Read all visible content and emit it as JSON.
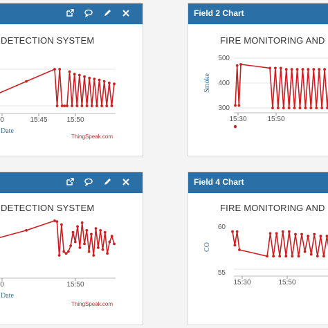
{
  "colors": {
    "header": "#2a6fa5",
    "series": "#cc1f1f",
    "grid": "#e6e6e6",
    "background": "#f4f4f4"
  },
  "panels": [
    {
      "id": "p1",
      "header_title": "",
      "icons": [
        "external-link-icon",
        "comment-icon",
        "pencil-icon",
        "close-icon"
      ],
      "chart_title": "DETECTION SYSTEM",
      "credit": "ThingSpeak.com",
      "chart_data": {
        "type": "line",
        "title": "DETECTION SYSTEM",
        "xlabel": "Date",
        "ylabel": "",
        "x_tick_labels": [
          "0",
          "15:45",
          "15:50"
        ],
        "series": [
          {
            "values": [
              50,
              75,
              100,
              25,
              100,
              25,
              25,
              25,
              95,
              25,
              90,
              25,
              88,
              25,
              85,
              25,
              82,
              25,
              80,
              25,
              78,
              25,
              75,
              25,
              72,
              25,
              70
            ]
          }
        ]
      }
    },
    {
      "id": "p2",
      "header_title": "Field 2 Chart",
      "icons": [],
      "chart_title": "FIRE MONITORING AND",
      "credit": "",
      "chart_data": {
        "type": "line",
        "title": "FIRE MONITORING AND",
        "xlabel": "",
        "ylabel": "Smoke",
        "y_tick_labels": [
          "500",
          "400",
          "300"
        ],
        "ylim": [
          280,
          520
        ],
        "x_tick_labels": [
          "15:30",
          "15:50"
        ],
        "series": [
          {
            "values": [
              310,
              470,
              310,
              475,
              460,
              300,
              460,
              300,
              460,
              300,
              455,
              300,
              455,
              300,
              455,
              300,
              455,
              300,
              455,
              300,
              455,
              300,
              455,
              300,
              455,
              300,
              455
            ]
          }
        ]
      }
    },
    {
      "id": "p3",
      "header_title": "",
      "icons": [
        "external-link-icon",
        "comment-icon",
        "pencil-icon",
        "close-icon"
      ],
      "chart_title": "DETECTION SYSTEM",
      "credit": "ThingSpeak.com",
      "chart_data": {
        "type": "line",
        "title": "DETECTION SYSTEM",
        "xlabel": "Date",
        "ylabel": "",
        "x_tick_labels": [
          "0",
          "15:50"
        ],
        "series": [
          {
            "values": [
              55,
              75,
              100,
              98,
              10,
              90,
              20,
              15,
              20,
              35,
              70,
              45,
              85,
              30,
              95,
              40,
              75,
              20,
              65,
              10,
              80,
              30,
              75,
              25,
              70,
              15,
              45,
              60,
              40
            ]
          }
        ]
      }
    },
    {
      "id": "p4",
      "header_title": "Field 4 Chart",
      "icons": [],
      "chart_title": "FIRE MONITORING AND",
      "credit": "",
      "chart_data": {
        "type": "line",
        "title": "FIRE MONITORING AND",
        "xlabel": "",
        "ylabel": "CO",
        "y_tick_labels": [
          "60",
          "55"
        ],
        "ylim": [
          54,
          61
        ],
        "x_tick_labels": [
          "15:30",
          "15:50"
        ],
        "series": [
          {
            "values": [
              59.5,
              58.0,
              59.5,
              57.5,
              56.8,
              59.3,
              56.8,
              59.3,
              56.8,
              59.5,
              56.8,
              59.5,
              56.8,
              59.2,
              56.8,
              59.2,
              57.3,
              59.0,
              57.0,
              59.2,
              56.8,
              59.0,
              56.8,
              59.0,
              56.8
            ]
          }
        ]
      }
    }
  ]
}
